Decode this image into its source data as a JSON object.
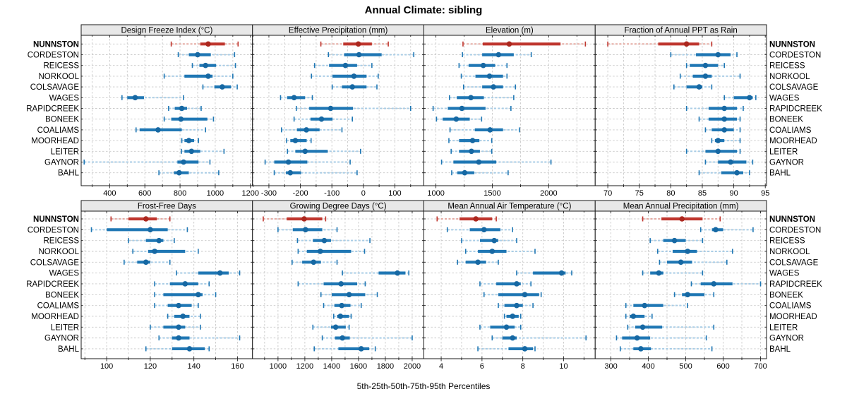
{
  "title": "Annual Climate: sibling",
  "footer": "5th-25th-50th-75th-95th Percentiles",
  "colors": {
    "highlight": "#bf362e",
    "highlight_light": "#e5aba4",
    "highlight_dot": "#ab271e",
    "normal": "#1f77b4",
    "normal_light": "#a9cde6",
    "normal_dot": "#1668a3",
    "header_bg": "#e8e8e8",
    "panel_border": "#1a1a1a",
    "gridline": "#c9c9c9",
    "tick": "#222222"
  },
  "chart_data": {
    "type": "dot-interval",
    "percentiles": [
      5,
      25,
      50,
      75,
      95
    ],
    "categories": [
      "NUNNSTON",
      "CORDESTON",
      "REICESS",
      "NORKOOL",
      "COLSAVAGE",
      "WAGES",
      "RAPIDCREEK",
      "BONEEK",
      "COALIAMS",
      "MOORHEAD",
      "LEITER",
      "GAYNOR",
      "BAHL"
    ],
    "highlight_category": "NUNNSTON",
    "legend_note": "5th-25th-50th-75th-95th Percentiles",
    "panels": [
      {
        "title": "Design Freeze Index (°C)",
        "grid_row": 0,
        "grid_col": 0,
        "xlim": [
          238,
          1212
        ],
        "major_ticks": [
          400,
          600,
          800,
          1000,
          1200
        ],
        "minor_step": 100,
        "values": [
          [
            750,
            915,
            960,
            1055,
            1130
          ],
          [
            790,
            850,
            900,
            975,
            1110
          ],
          [
            870,
            910,
            945,
            1005,
            1115
          ],
          [
            710,
            825,
            960,
            985,
            1100
          ],
          [
            930,
            995,
            1040,
            1090,
            1125
          ],
          [
            470,
            500,
            545,
            595,
            820
          ],
          [
            735,
            770,
            810,
            840,
            920
          ],
          [
            710,
            750,
            805,
            955,
            990
          ],
          [
            550,
            570,
            675,
            810,
            945
          ],
          [
            810,
            825,
            850,
            880,
            905
          ],
          [
            808,
            825,
            865,
            915,
            1050
          ],
          [
            255,
            785,
            820,
            905,
            970
          ],
          [
            680,
            765,
            795,
            850,
            1020
          ]
        ]
      },
      {
        "title": "Effective Precipitation (mm)",
        "grid_row": 0,
        "grid_col": 1,
        "xlim": [
          -352,
          192
        ],
        "major_ticks": [
          -300,
          -200,
          -100,
          0,
          100
        ],
        "minor_step": 50,
        "values": [
          [
            -135,
            -64,
            -16,
            27,
            79
          ],
          [
            -111,
            -61,
            -14,
            58,
            160
          ],
          [
            -155,
            -109,
            -57,
            -20,
            27
          ],
          [
            -165,
            -98,
            -30,
            10,
            47
          ],
          [
            -99,
            -68,
            -35,
            10,
            43
          ],
          [
            -263,
            -242,
            -220,
            -185,
            -162
          ],
          [
            -213,
            -172,
            -104,
            -33,
            150
          ],
          [
            -220,
            -168,
            -133,
            -98,
            -35
          ],
          [
            -260,
            -211,
            -181,
            -139,
            -68
          ],
          [
            -244,
            -232,
            -216,
            -180,
            -166
          ],
          [
            -241,
            -216,
            -185,
            -113,
            -9
          ],
          [
            -312,
            -283,
            -238,
            -178,
            -42
          ],
          [
            -283,
            -246,
            -232,
            -198,
            -20
          ]
        ]
      },
      {
        "title": "Elevation (m)",
        "grid_row": 0,
        "grid_col": 2,
        "xlim": [
          893,
          2412
        ],
        "major_ticks": [
          1000,
          1500,
          2000
        ],
        "minor_step": 250,
        "values": [
          [
            1240,
            1415,
            1650,
            2105,
            2325
          ],
          [
            1235,
            1410,
            1555,
            1690,
            1845
          ],
          [
            1205,
            1290,
            1420,
            1525,
            1630
          ],
          [
            1225,
            1350,
            1475,
            1595,
            1630
          ],
          [
            1245,
            1410,
            1510,
            1595,
            1705
          ],
          [
            1120,
            1185,
            1310,
            1425,
            1690
          ],
          [
            975,
            1105,
            1230,
            1440,
            1665
          ],
          [
            1005,
            1060,
            1180,
            1300,
            1405
          ],
          [
            1125,
            1345,
            1480,
            1595,
            1740
          ],
          [
            1115,
            1205,
            1325,
            1385,
            1495
          ],
          [
            1135,
            1205,
            1315,
            1390,
            1495
          ],
          [
            1050,
            1155,
            1380,
            1535,
            2020
          ],
          [
            1140,
            1190,
            1255,
            1340,
            1640
          ]
        ]
      },
      {
        "title": "Fraction of Annual PPT as Rain",
        "grid_row": 0,
        "grid_col": 3,
        "xlim": [
          68,
          95.2
        ],
        "major_ticks": [
          70,
          75,
          80,
          85,
          90,
          95
        ],
        "minor_step": 2.5,
        "values": [
          [
            70,
            78,
            82.5,
            84.5,
            86.5
          ],
          [
            80,
            84,
            87.5,
            89.5,
            90.5
          ],
          [
            82.5,
            83,
            85.5,
            87.5,
            88.5
          ],
          [
            81.5,
            83.5,
            85.5,
            86.5,
            91
          ],
          [
            80.5,
            82.5,
            84.5,
            85,
            86.5
          ],
          [
            88.5,
            90,
            92.5,
            93,
            93.5
          ],
          [
            82.5,
            86,
            88.5,
            90.5,
            91.5
          ],
          [
            84.5,
            86,
            88.5,
            90.5,
            91
          ],
          [
            85.5,
            86.5,
            88.5,
            90,
            91
          ],
          [
            86.5,
            87,
            87.5,
            88.5,
            91
          ],
          [
            82.5,
            85.5,
            87.5,
            90.5,
            91
          ],
          [
            85.5,
            87.5,
            89.5,
            92,
            93
          ],
          [
            84.5,
            88,
            90.5,
            91.5,
            92.5
          ]
        ]
      },
      {
        "title": "Frost-Free Days",
        "grid_row": 1,
        "grid_col": 0,
        "xlim": [
          88.3,
          166.9
        ],
        "major_ticks": [
          100,
          120,
          140,
          160
        ],
        "minor_step": 10,
        "values": [
          [
            102,
            110,
            118,
            123,
            129
          ],
          [
            93,
            100,
            120,
            128,
            137
          ],
          [
            110,
            118,
            124,
            126,
            131
          ],
          [
            112,
            119,
            122,
            136,
            142
          ],
          [
            108,
            114,
            118,
            120,
            129
          ],
          [
            132,
            142,
            152,
            156,
            161
          ],
          [
            122,
            129,
            136,
            142,
            147
          ],
          [
            122,
            126,
            142,
            144,
            150
          ],
          [
            122,
            128,
            133,
            139,
            142
          ],
          [
            128,
            131,
            135,
            138,
            143
          ],
          [
            120,
            126,
            133,
            136,
            143
          ],
          [
            124,
            130,
            133,
            138,
            161
          ],
          [
            118,
            130,
            138,
            145,
            147
          ]
        ]
      },
      {
        "title": "Growing Degree Days (°C)",
        "grid_row": 1,
        "grid_col": 1,
        "xlim": [
          810,
          2087
        ],
        "major_ticks": [
          1000,
          1200,
          1400,
          1600,
          1800,
          2000
        ],
        "minor_step": 100,
        "values": [
          [
            890,
            1065,
            1195,
            1330,
            1355
          ],
          [
            1000,
            1110,
            1205,
            1330,
            1440
          ],
          [
            1145,
            1260,
            1345,
            1395,
            1685
          ],
          [
            1150,
            1215,
            1315,
            1545,
            1645
          ],
          [
            1105,
            1180,
            1265,
            1320,
            1440
          ],
          [
            1480,
            1750,
            1890,
            1950,
            1975
          ],
          [
            1150,
            1340,
            1470,
            1590,
            1650
          ],
          [
            1320,
            1400,
            1530,
            1650,
            1740
          ],
          [
            1340,
            1420,
            1475,
            1540,
            1620
          ],
          [
            1415,
            1440,
            1465,
            1530,
            1545
          ],
          [
            1260,
            1395,
            1430,
            1505,
            1530
          ],
          [
            1330,
            1425,
            1480,
            1535,
            2000
          ],
          [
            1270,
            1450,
            1620,
            1680,
            1725
          ]
        ]
      },
      {
        "title": "Mean Annual Air Temperature (°C)",
        "grid_row": 1,
        "grid_col": 2,
        "xlim": [
          3.15,
          11.55
        ],
        "major_ticks": [
          4,
          6,
          8,
          10
        ],
        "minor_step": 1,
        "values": [
          [
            3.8,
            4.9,
            5.7,
            6.5,
            6.7
          ],
          [
            4.3,
            5.4,
            6.1,
            6.9,
            7.5
          ],
          [
            5.0,
            5.9,
            6.6,
            6.8,
            7.7
          ],
          [
            5.2,
            5.8,
            6.5,
            7.2,
            8.6
          ],
          [
            4.8,
            5.2,
            5.8,
            6.2,
            6.8
          ],
          [
            7.7,
            8.5,
            9.9,
            10.1,
            10.4
          ],
          [
            5.9,
            6.7,
            7.7,
            7.9,
            8.4
          ],
          [
            6.1,
            6.8,
            8.1,
            8.8,
            8.9
          ],
          [
            6.8,
            7.1,
            7.7,
            8.0,
            8.5
          ],
          [
            7.1,
            7.2,
            7.5,
            7.8,
            7.9
          ],
          [
            5.9,
            6.4,
            7.2,
            7.6,
            7.9
          ],
          [
            6.5,
            7.0,
            7.5,
            7.7,
            11.1
          ],
          [
            5.8,
            7.3,
            8.1,
            8.5,
            8.6
          ]
        ]
      },
      {
        "title": "Mean Annual Precipitation (mm)",
        "grid_row": 1,
        "grid_col": 3,
        "xlim": [
          258,
          716
        ],
        "major_ticks": [
          300,
          400,
          500,
          600,
          700
        ],
        "minor_step": 50,
        "values": [
          [
            385,
            435,
            490,
            545,
            592
          ],
          [
            540,
            570,
            580,
            600,
            680
          ],
          [
            405,
            440,
            470,
            500,
            545
          ],
          [
            425,
            465,
            505,
            530,
            625
          ],
          [
            430,
            450,
            487,
            517,
            610
          ],
          [
            385,
            405,
            428,
            440,
            545
          ],
          [
            515,
            540,
            575,
            625,
            700
          ],
          [
            470,
            490,
            505,
            550,
            575
          ],
          [
            340,
            360,
            390,
            440,
            505
          ],
          [
            340,
            350,
            360,
            390,
            410
          ],
          [
            345,
            365,
            385,
            437,
            575
          ],
          [
            315,
            330,
            370,
            405,
            555
          ],
          [
            325,
            360,
            380,
            407,
            570
          ]
        ]
      }
    ]
  }
}
